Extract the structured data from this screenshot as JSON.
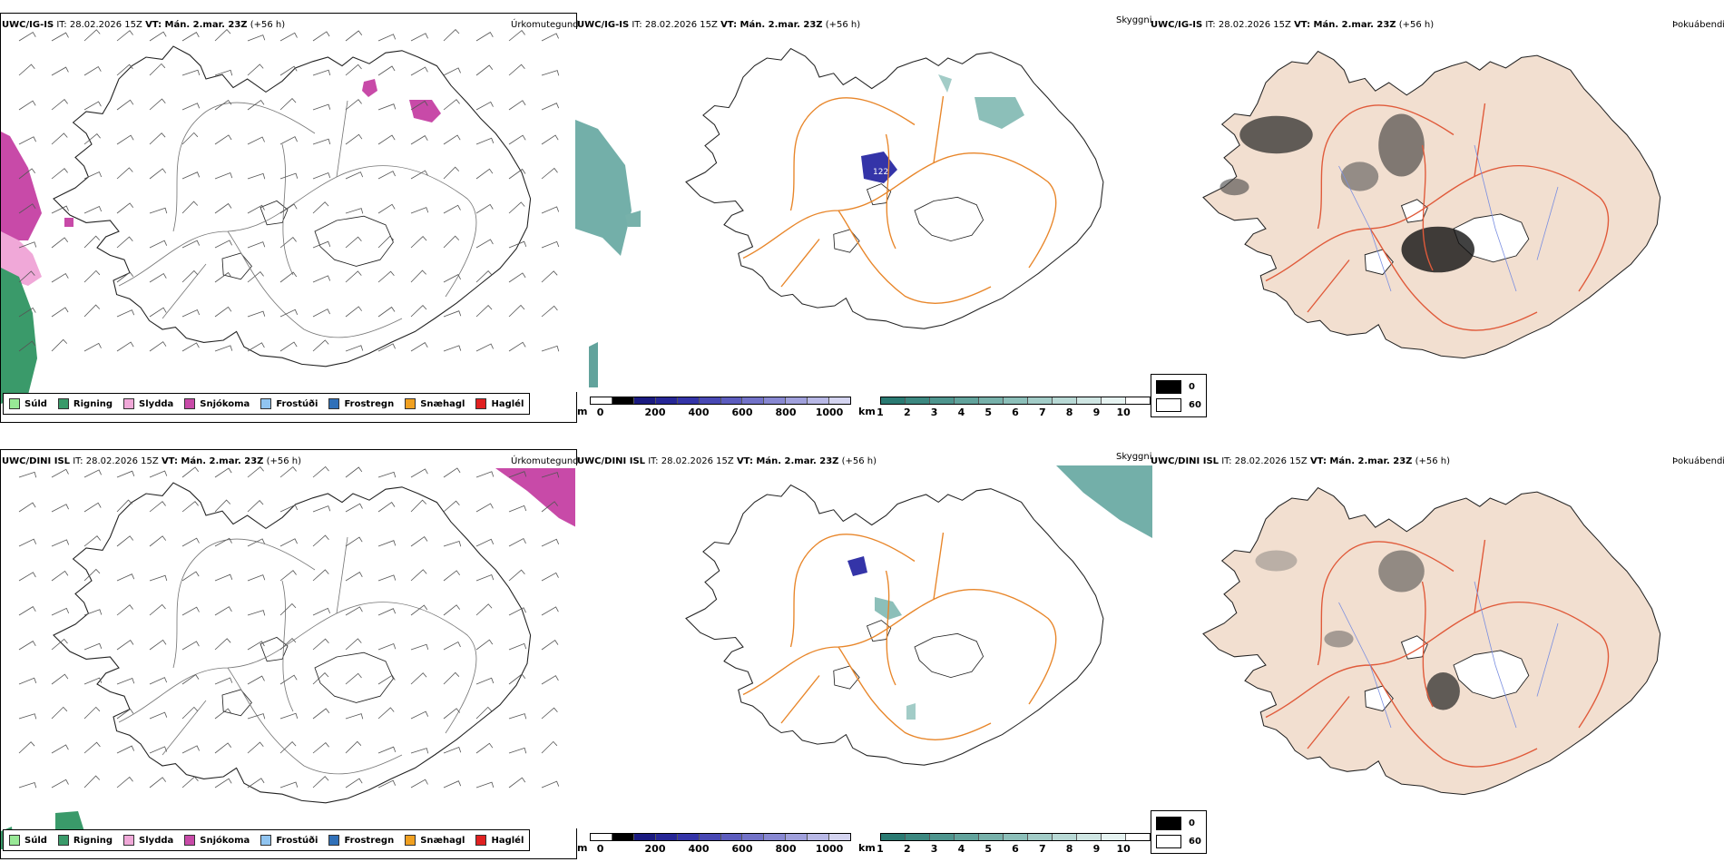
{
  "rows": [
    {
      "header_model": "UWC/IG-IS",
      "header_it": "IT: 28.02.2026 15Z",
      "header_vt": "VT: Mán. 2.mar. 23Z",
      "header_lead": "(+56 h)",
      "precip_title": "Úrkomutegund",
      "vis_title": "Skyggni",
      "fog_title": "Þokuábendi"
    },
    {
      "header_model": "UWC/DINI ISL",
      "header_it": "IT: 28.02.2026 15Z",
      "header_vt": "VT: Mán. 2.mar. 23Z",
      "header_lead": "(+56 h)",
      "precip_title": "Úrkomutegund",
      "vis_title": "Skyggni",
      "fog_title": "Þokuábendi"
    }
  ],
  "precip_legend": [
    {
      "label": "Súld",
      "color": "#98e896"
    },
    {
      "label": "Rigning",
      "color": "#3a9a6a"
    },
    {
      "label": "Slydda",
      "color": "#f0a8d8"
    },
    {
      "label": "Snjókoma",
      "color": "#c84aa8"
    },
    {
      "label": "Frostúði",
      "color": "#90c4f0"
    },
    {
      "label": "Frostregn",
      "color": "#3070b8"
    },
    {
      "label": "Snæhagl",
      "color": "#f0a020"
    },
    {
      "label": "Haglél",
      "color": "#e02020"
    }
  ],
  "height_scale": {
    "unit": "m",
    "ticks": [
      "0",
      "200",
      "400",
      "600",
      "800",
      "1000"
    ],
    "colors": [
      "#ffffff",
      "#000000",
      "#1a1a80",
      "#262696",
      "#3434a8",
      "#4848b4",
      "#5c5cbe",
      "#7272c8",
      "#8888d2",
      "#a0a0dc",
      "#b8b8e6",
      "#d4d4f0"
    ]
  },
  "vis_scale": {
    "unit": "km",
    "ticks": [
      "1",
      "2",
      "3",
      "4",
      "5",
      "6",
      "7",
      "8",
      "9",
      "10"
    ],
    "colors": [
      "#2a7a72",
      "#3c8880",
      "#4e958e",
      "#62a39c",
      "#77b1aa",
      "#8cbfb9",
      "#a2ccc7",
      "#b8d9d5",
      "#cfe6e3",
      "#e6f3f1",
      "#ffffff"
    ]
  },
  "fog_legend": [
    {
      "label": "0",
      "color": "#000000"
    },
    {
      "label": "60",
      "color": "#ffffff"
    }
  ],
  "map_labels": {
    "height_max": "122"
  }
}
